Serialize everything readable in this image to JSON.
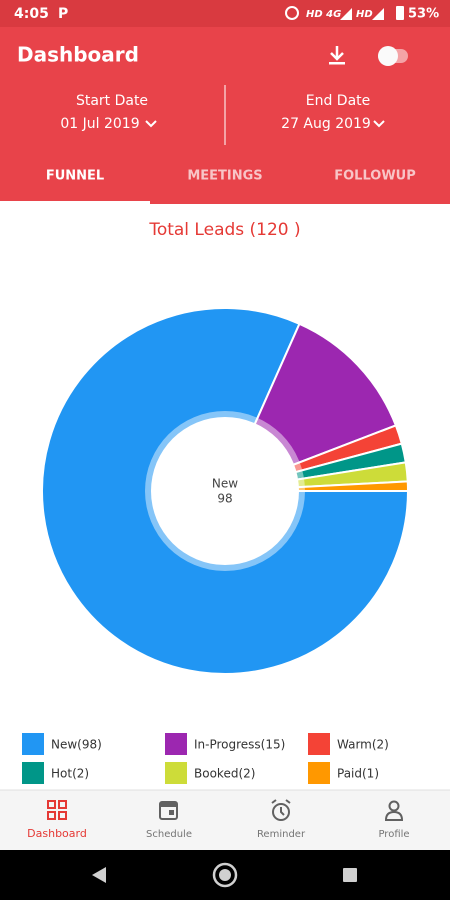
{
  "status_bar": {
    "time": "4:05",
    "app_icon": "P",
    "network": "HD 4G",
    "network2": "HD",
    "battery": "53%"
  },
  "header": {
    "title": "Dashboard",
    "start_label": "Start Date",
    "start_date": "01 Jul 2019",
    "end_label": "End Date",
    "end_date": "27 Aug 2019"
  },
  "tabs": [
    "FUNNEL",
    "MEETINGS",
    "FOLLOWUP"
  ],
  "chart_data": {
    "type": "pie",
    "title": "Total Leads (120 )",
    "categories": [
      "New",
      "In-Progress",
      "Warm",
      "Hot",
      "Booked",
      "Paid"
    ],
    "values": [
      98,
      15,
      2,
      2,
      2,
      1
    ],
    "colors": [
      "#2196f3",
      "#9c27b0",
      "#f44336",
      "#009688",
      "#cddc39",
      "#ff9800"
    ],
    "legend_labels": [
      "New(98)",
      "In-Progress(15)",
      "Warm(2)",
      "Hot(2)",
      "Booked(2)",
      "Paid(1)"
    ]
  },
  "bottom_nav": [
    "Dashboard",
    "Schedule",
    "Reminder",
    "Profile"
  ]
}
